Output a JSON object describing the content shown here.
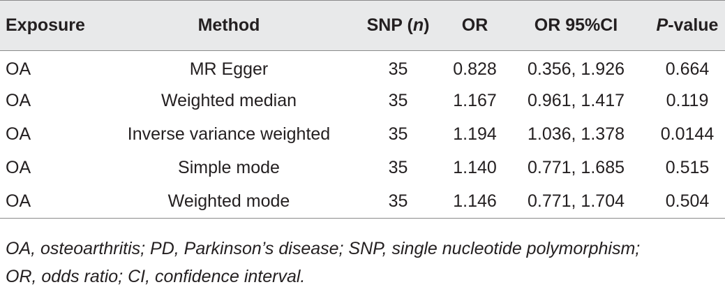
{
  "table": {
    "headers": {
      "exposure": "Exposure",
      "method": "Method",
      "snp_prefix": "SNP (",
      "snp_n": "n",
      "snp_suffix": ")",
      "or": "OR",
      "or_ci": "OR 95%CI",
      "p_prefix": "P",
      "p_suffix": "-value"
    },
    "rows": [
      {
        "exposure": "OA",
        "method": "MR Egger",
        "snp": "35",
        "or": "0.828",
        "ci": "0.356, 1.926",
        "p": "0.664"
      },
      {
        "exposure": "OA",
        "method": "Weighted median",
        "snp": "35",
        "or": "1.167",
        "ci": "0.961, 1.417",
        "p": "0.119"
      },
      {
        "exposure": "OA",
        "method": "Inverse variance weighted",
        "snp": "35",
        "or": "1.194",
        "ci": "1.036, 1.378",
        "p": "0.0144"
      },
      {
        "exposure": "OA",
        "method": "Simple mode",
        "snp": "35",
        "or": "1.140",
        "ci": "0.771, 1.685",
        "p": "0.515"
      },
      {
        "exposure": "OA",
        "method": "Weighted mode",
        "snp": "35",
        "or": "1.146",
        "ci": "0.771, 1.704",
        "p": "0.504"
      }
    ]
  },
  "footnote": {
    "line1": "OA, osteoarthritis; PD, Parkinson’s disease; SNP, single nucleotide polymorphism;",
    "line2": "OR, odds ratio; CI, confidence interval."
  }
}
